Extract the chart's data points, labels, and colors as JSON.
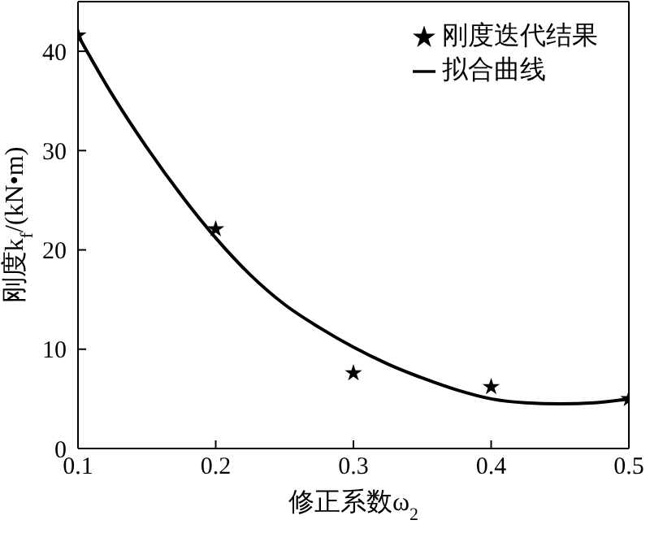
{
  "chart_data": {
    "type": "line",
    "xlabel": "修正系数ω$_{2}$",
    "ylabel": "刚度k$_{f}$/(kN•m)",
    "xlim": [
      0.1,
      0.5
    ],
    "xticks": [
      0.1,
      0.2,
      0.3,
      0.4,
      0.5
    ],
    "ylim": [
      0,
      45
    ],
    "yticks": [
      0,
      10,
      20,
      30,
      40
    ],
    "legend": "top right",
    "series": [
      {
        "name": "刚度迭代结果",
        "type": "scatter",
        "marker": "star",
        "color": "#000000",
        "x": [
          0.1,
          0.2,
          0.3,
          0.4,
          0.5
        ],
        "values": [
          41.6,
          22.1,
          7.6,
          6.2,
          5.0
        ]
      },
      {
        "name": "拟合曲线",
        "type": "line",
        "marker": "none",
        "line_style": "solid",
        "color": "#000000",
        "x": [
          0.1,
          0.125,
          0.15,
          0.175,
          0.2,
          0.225,
          0.25,
          0.275,
          0.3,
          0.325,
          0.35,
          0.375,
          0.4,
          0.425,
          0.45,
          0.475,
          0.5
        ],
        "values": [
          41.6,
          35.6,
          30.3,
          25.5,
          21.2,
          17.5,
          14.5,
          12.2,
          10.2,
          8.5,
          7.1,
          5.9,
          5.0,
          4.6,
          4.5,
          4.6,
          5.0
        ]
      }
    ]
  }
}
